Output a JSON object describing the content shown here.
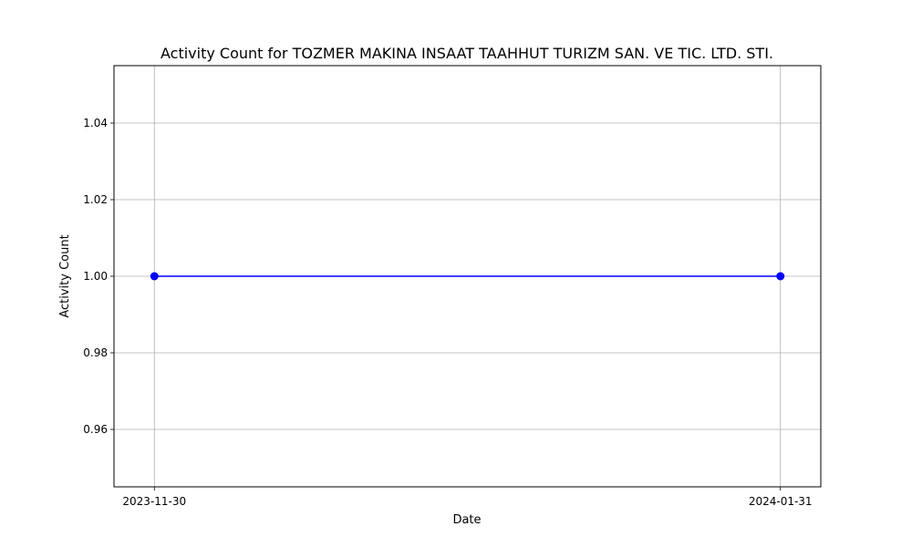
{
  "chart_data": {
    "type": "line",
    "title": "Activity Count for TOZMER MAKINA INSAAT TAAHHUT TURIZM SAN. VE TIC. LTD. STI.",
    "xlabel": "Date",
    "ylabel": "Activity Count",
    "x": [
      "2023-11-30",
      "2024-01-31"
    ],
    "series": [
      {
        "values": [
          1,
          1
        ],
        "color": "#0000ff",
        "marker": "circle"
      }
    ],
    "xlim": [
      "2023-11-26",
      "2024-02-04"
    ],
    "ylim": [
      0.945,
      1.055
    ],
    "xticks": [
      "2023-11-30",
      "2024-01-31"
    ],
    "yticks": [
      0.96,
      0.98,
      1.0,
      1.02,
      1.04
    ],
    "ytick_labels": [
      "0.96",
      "0.98",
      "1.00",
      "1.02",
      "1.04"
    ],
    "grid": true,
    "legend": false
  }
}
